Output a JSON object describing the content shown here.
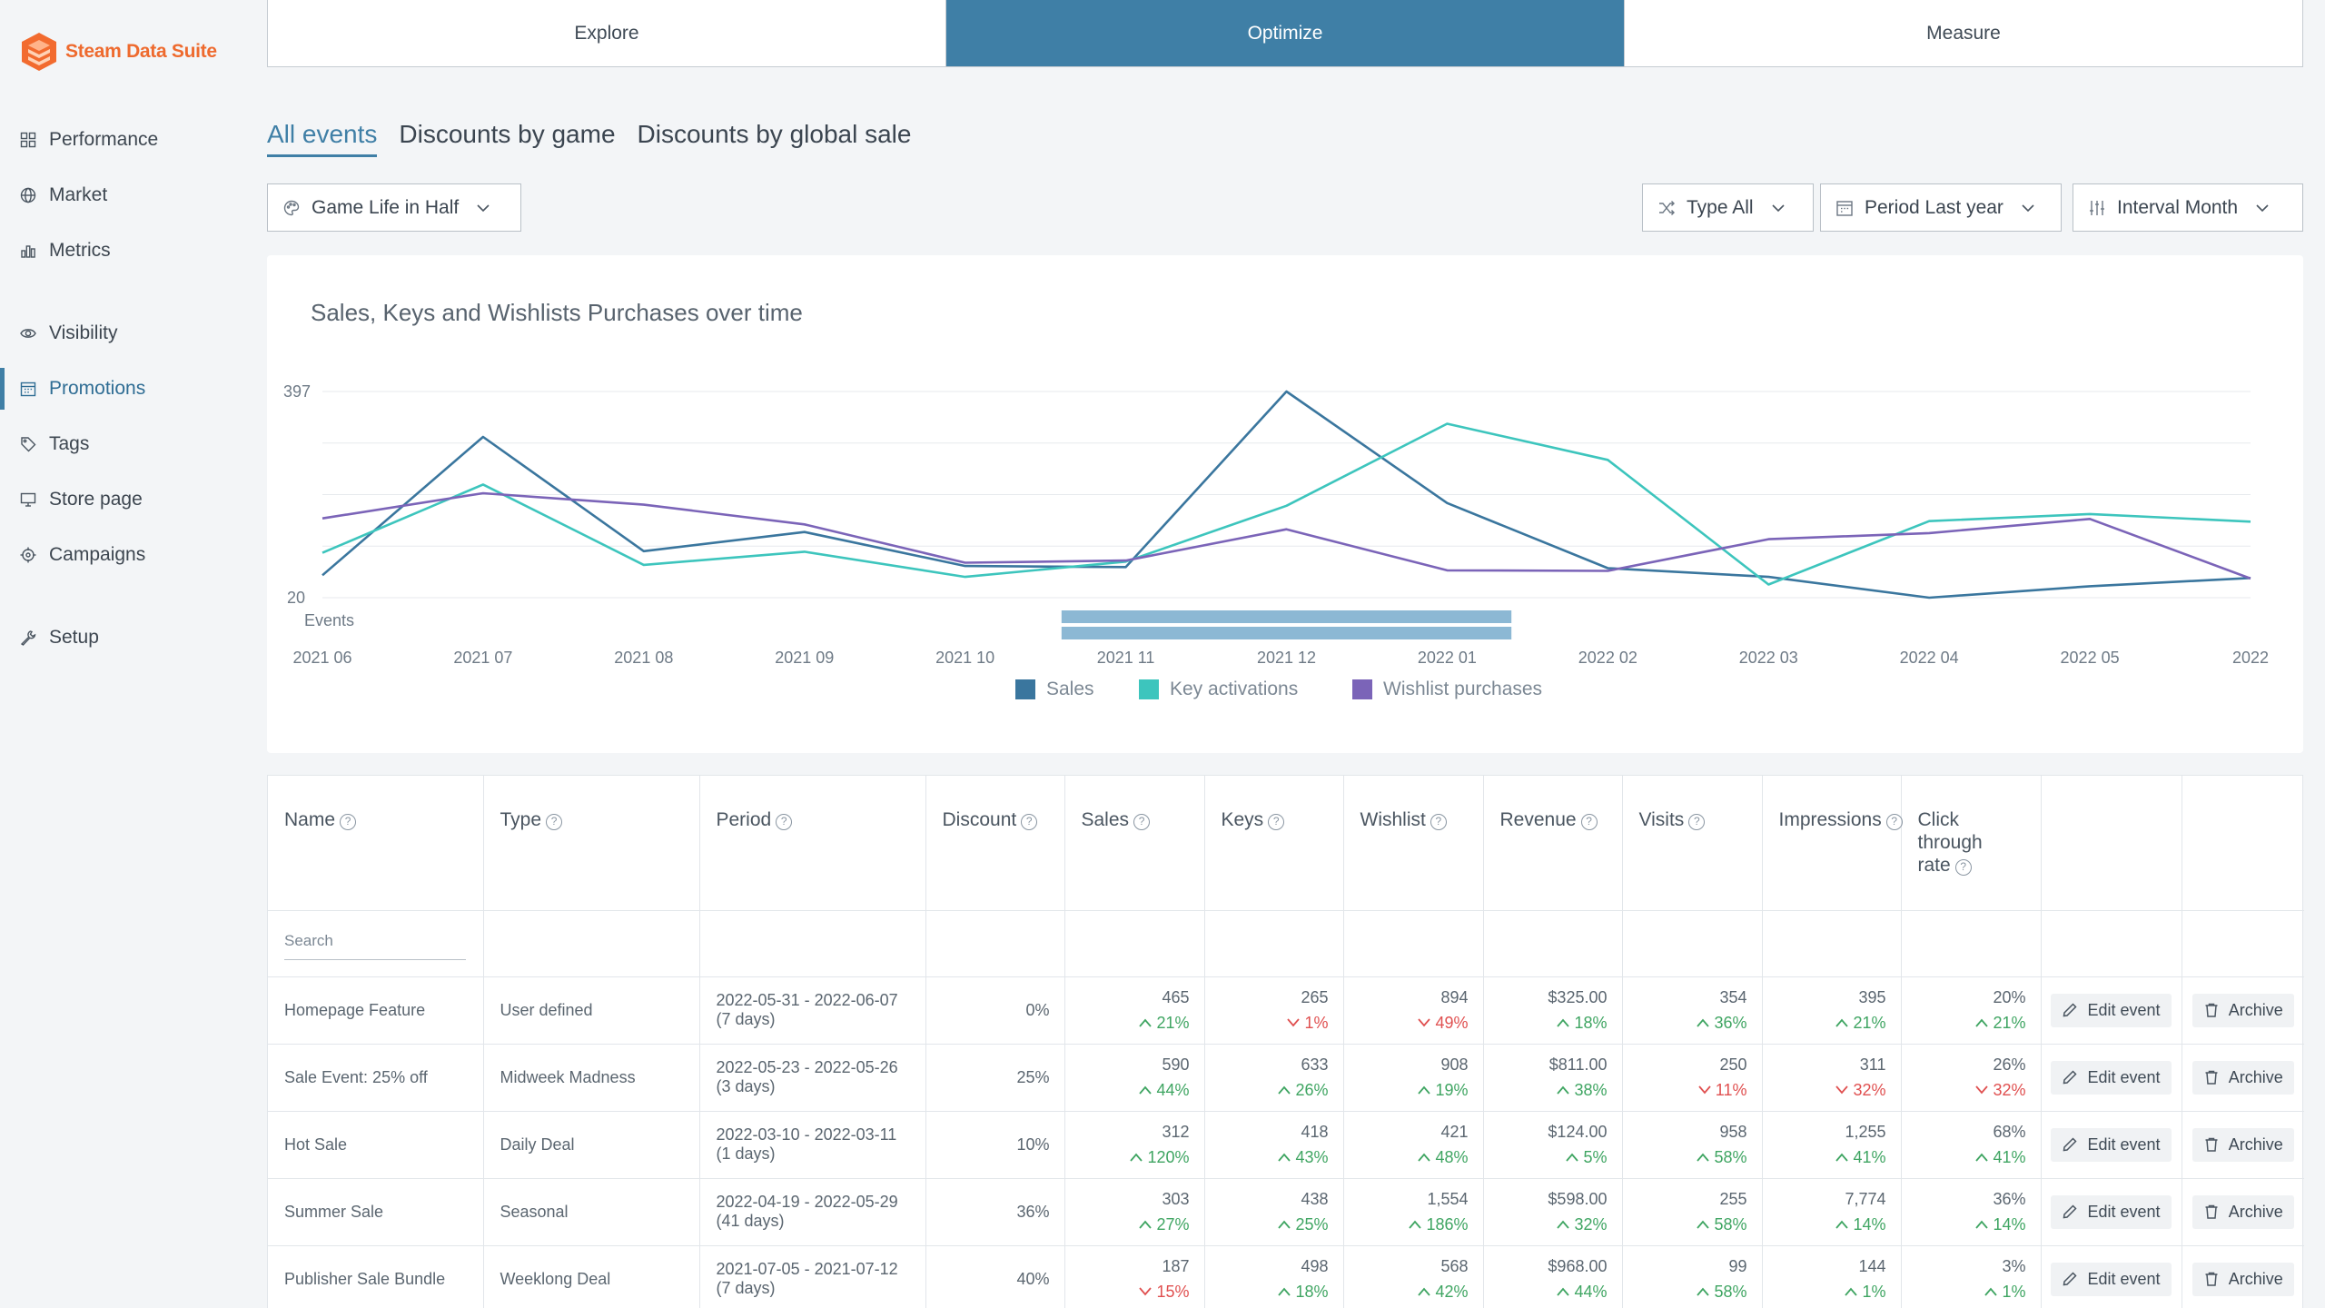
{
  "app": {
    "name": "Steam Data Suite"
  },
  "sidebar": {
    "items": [
      {
        "label": "Performance",
        "icon": "grid-icon"
      },
      {
        "label": "Market",
        "icon": "globe-icon"
      },
      {
        "label": "Metrics",
        "icon": "bar-chart-icon"
      },
      {
        "label": "Visibility",
        "icon": "eye-icon"
      },
      {
        "label": "Promotions",
        "icon": "calendar-icon",
        "active": true
      },
      {
        "label": "Tags",
        "icon": "tag-icon"
      },
      {
        "label": "Store page",
        "icon": "monitor-icon"
      },
      {
        "label": "Campaigns",
        "icon": "target-icon"
      },
      {
        "label": "Setup",
        "icon": "wrench-icon"
      }
    ]
  },
  "top_tabs": [
    {
      "label": "Explore"
    },
    {
      "label": "Optimize",
      "active": true
    },
    {
      "label": "Measure"
    }
  ],
  "sub_tabs": [
    {
      "label": "All events",
      "active": true
    },
    {
      "label": "Discounts by game"
    },
    {
      "label": "Discounts by global sale"
    }
  ],
  "filters": {
    "game": "Game Life in Half",
    "type": "Type All",
    "period": "Period Last year",
    "interval": "Interval Month"
  },
  "chart": {
    "title": "Sales, Keys and Wishlists Purchases over time",
    "events_label": "Events",
    "legend": [
      "Sales",
      "Key activations",
      "Wishlist purchases"
    ],
    "colors": {
      "sales": "#3a769e",
      "keys": "#3dc5bd",
      "wishlist": "#7b64b8",
      "event_bar": "#8cb8d4"
    }
  },
  "chart_data": {
    "type": "line",
    "x": [
      "2021 06",
      "2021 07",
      "2021 08",
      "2021 09",
      "2021 10",
      "2021 11",
      "2021 12",
      "2022 01",
      "2022 02",
      "2022 03",
      "2022 04",
      "2022 05",
      "2022"
    ],
    "y_tick_labels": [
      "397",
      "20"
    ],
    "ylim": [
      20,
      397
    ],
    "series": [
      {
        "name": "Sales",
        "values": [
          61,
          314,
          105,
          140,
          78,
          76,
          397,
          193,
          74,
          58,
          20,
          41,
          56
        ]
      },
      {
        "name": "Key activations",
        "values": [
          102,
          227,
          80,
          104,
          58,
          86,
          188,
          338,
          272,
          44,
          160,
          173,
          159
        ]
      },
      {
        "name": "Wishlist purchases",
        "values": [
          165,
          211,
          190,
          154,
          84,
          88,
          145,
          70,
          69,
          127,
          138,
          164,
          55
        ]
      }
    ],
    "event_bars": [
      {
        "start": "2021 10.6",
        "end": "2022 01.4"
      },
      {
        "start": "2021 10.6",
        "end": "2022 01.4"
      }
    ]
  },
  "table": {
    "headers": [
      "Name",
      "Type",
      "Period",
      "Discount",
      "Sales",
      "Keys",
      "Wishlist",
      "Revenue",
      "Visits",
      "Impressions",
      "Click through rate"
    ],
    "search_placeholder": "Search",
    "edit_label": "Edit event",
    "archive_label": "Archive",
    "rows": [
      {
        "name": "Homepage Feature",
        "type": "User defined",
        "period": "2022-05-31 - 2022-06-07 (7 days)",
        "discount": "0%",
        "metrics": [
          {
            "value": "465",
            "delta": "21%",
            "dir": "up"
          },
          {
            "value": "265",
            "delta": "1%",
            "dir": "down"
          },
          {
            "value": "894",
            "delta": "49%",
            "dir": "down"
          },
          {
            "value": "$325.00",
            "delta": "18%",
            "dir": "up"
          },
          {
            "value": "354",
            "delta": "36%",
            "dir": "up"
          },
          {
            "value": "395",
            "delta": "21%",
            "dir": "up"
          },
          {
            "value": "20%",
            "delta": "21%",
            "dir": "up"
          }
        ]
      },
      {
        "name": "Sale Event: 25% off",
        "type": "Midweek Madness",
        "period": "2022-05-23 - 2022-05-26 (3 days)",
        "discount": "25%",
        "metrics": [
          {
            "value": "590",
            "delta": "44%",
            "dir": "up"
          },
          {
            "value": "633",
            "delta": "26%",
            "dir": "up"
          },
          {
            "value": "908",
            "delta": "19%",
            "dir": "up"
          },
          {
            "value": "$811.00",
            "delta": "38%",
            "dir": "up"
          },
          {
            "value": "250",
            "delta": "11%",
            "dir": "down"
          },
          {
            "value": "311",
            "delta": "32%",
            "dir": "down"
          },
          {
            "value": "26%",
            "delta": "32%",
            "dir": "down"
          }
        ]
      },
      {
        "name": "Hot Sale",
        "type": "Daily Deal",
        "period": "2022-03-10 - 2022-03-11 (1 days)",
        "discount": "10%",
        "metrics": [
          {
            "value": "312",
            "delta": "120%",
            "dir": "up"
          },
          {
            "value": "418",
            "delta": "43%",
            "dir": "up"
          },
          {
            "value": "421",
            "delta": "48%",
            "dir": "up"
          },
          {
            "value": "$124.00",
            "delta": "5%",
            "dir": "up"
          },
          {
            "value": "958",
            "delta": "58%",
            "dir": "up"
          },
          {
            "value": "1,255",
            "delta": "41%",
            "dir": "up"
          },
          {
            "value": "68%",
            "delta": "41%",
            "dir": "up"
          }
        ]
      },
      {
        "name": "Summer Sale",
        "type": "Seasonal",
        "period": "2022-04-19 - 2022-05-29 (41 days)",
        "discount": "36%",
        "metrics": [
          {
            "value": "303",
            "delta": "27%",
            "dir": "up"
          },
          {
            "value": "438",
            "delta": "25%",
            "dir": "up"
          },
          {
            "value": "1,554",
            "delta": "186%",
            "dir": "up"
          },
          {
            "value": "$598.00",
            "delta": "32%",
            "dir": "up"
          },
          {
            "value": "255",
            "delta": "58%",
            "dir": "up"
          },
          {
            "value": "7,774",
            "delta": "14%",
            "dir": "up"
          },
          {
            "value": "36%",
            "delta": "14%",
            "dir": "up"
          }
        ]
      },
      {
        "name": "Publisher Sale Bundle",
        "type": "Weeklong Deal",
        "period": "2021-07-05 - 2021-07-12 (7 days)",
        "discount": "40%",
        "metrics": [
          {
            "value": "187",
            "delta": "15%",
            "dir": "down"
          },
          {
            "value": "498",
            "delta": "18%",
            "dir": "up"
          },
          {
            "value": "568",
            "delta": "42%",
            "dir": "up"
          },
          {
            "value": "$968.00",
            "delta": "44%",
            "dir": "up"
          },
          {
            "value": "99",
            "delta": "58%",
            "dir": "up"
          },
          {
            "value": "144",
            "delta": "1%",
            "dir": "up"
          },
          {
            "value": "3%",
            "delta": "1%",
            "dir": "up"
          }
        ]
      }
    ]
  }
}
